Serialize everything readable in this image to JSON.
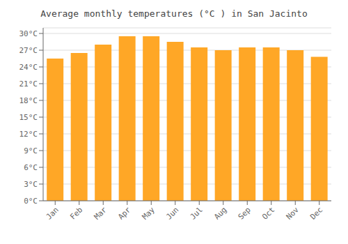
{
  "chart_data": {
    "type": "bar",
    "title": "Average monthly temperatures (°C ) in San Jacinto",
    "categories": [
      "Jan",
      "Feb",
      "Mar",
      "Apr",
      "May",
      "Jun",
      "Jul",
      "Aug",
      "Sep",
      "Oct",
      "Nov",
      "Dec"
    ],
    "values": [
      25.5,
      26.5,
      28.0,
      29.5,
      29.5,
      28.5,
      27.5,
      27.0,
      27.5,
      27.5,
      27.0,
      25.8
    ],
    "color": "#FFA726",
    "ylim": [
      0,
      31
    ],
    "yticks": [
      {
        "value": 0,
        "label": "0°C"
      },
      {
        "value": 3,
        "label": "3°C"
      },
      {
        "value": 6,
        "label": "6°C"
      },
      {
        "value": 9,
        "label": "9°C"
      },
      {
        "value": 12,
        "label": "12°C"
      },
      {
        "value": 15,
        "label": "15°C"
      },
      {
        "value": 18,
        "label": "18°C"
      },
      {
        "value": 21,
        "label": "21°C"
      },
      {
        "value": 24,
        "label": "24°C"
      },
      {
        "value": 27,
        "label": "27°C"
      },
      {
        "value": 30,
        "label": "30°C"
      }
    ],
    "grid": true
  }
}
